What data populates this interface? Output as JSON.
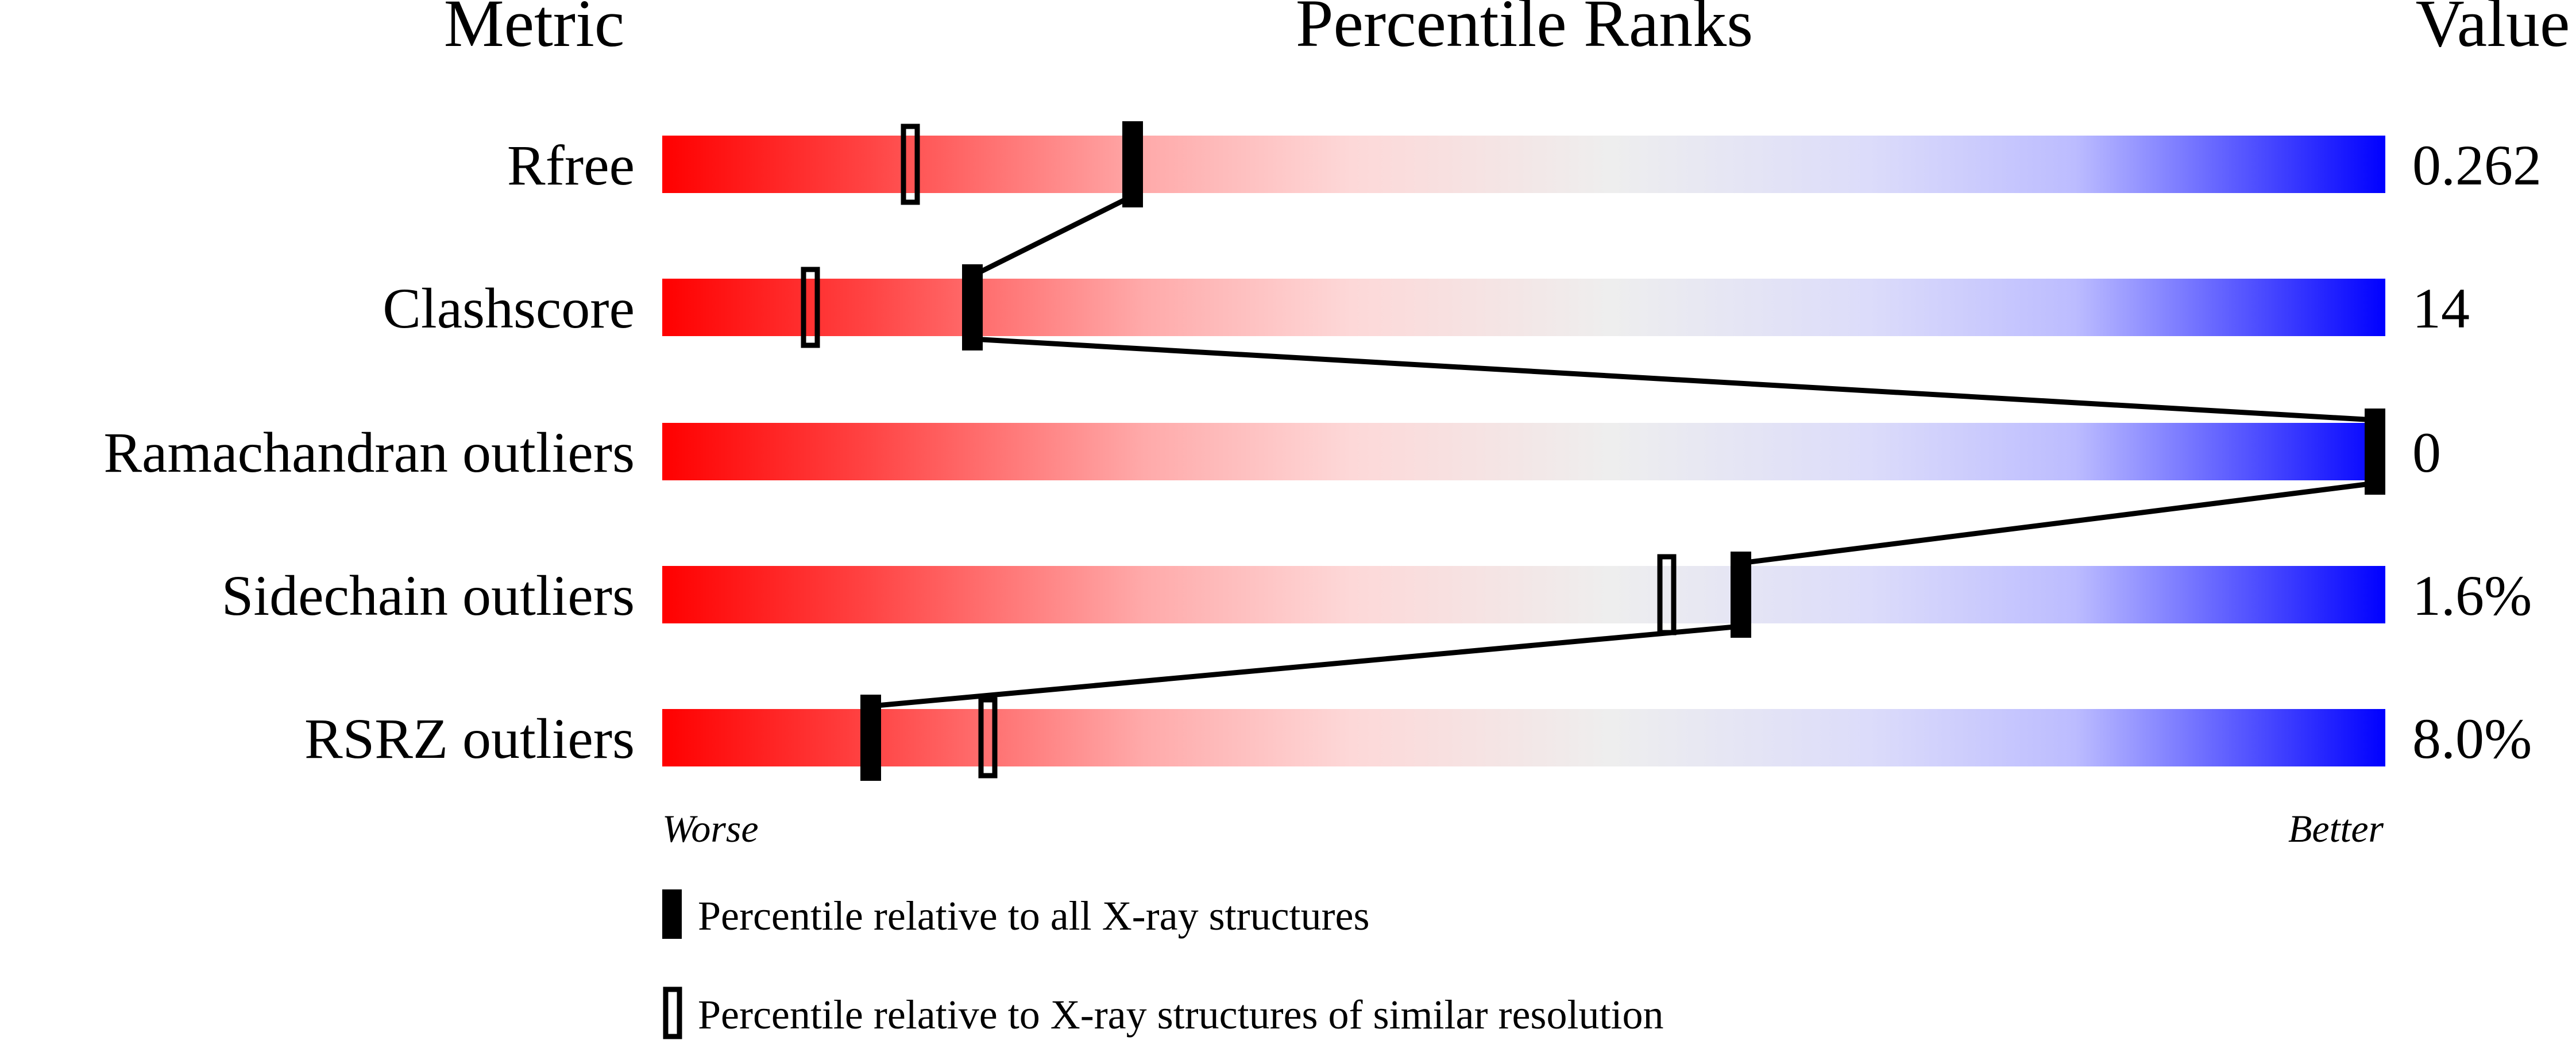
{
  "chart_data": {
    "type": "percentile-slider",
    "headers": {
      "metric": "Metric",
      "ranks": "Percentile Ranks",
      "value": "Value"
    },
    "xlim": [
      0,
      100
    ],
    "rows": [
      {
        "metric": "Rfree",
        "value": "0.262",
        "percentile_all": 27.3,
        "percentile_similar": 14.4
      },
      {
        "metric": "Clashscore",
        "value": "14",
        "percentile_all": 18.0,
        "percentile_similar": 8.6
      },
      {
        "metric": "Ramachandran outliers",
        "value": "0",
        "percentile_all": 100,
        "percentile_similar": 100
      },
      {
        "metric": "Sidechain outliers",
        "value": "1.6%",
        "percentile_all": 62.6,
        "percentile_similar": 58.3
      },
      {
        "metric": "RSRZ outliers",
        "value": "8.0%",
        "percentile_all": 12.1,
        "percentile_similar": 18.9
      }
    ],
    "axis": {
      "left": "Worse",
      "right": "Better"
    },
    "legend": [
      {
        "marker": "filled",
        "label": "Percentile relative to all X-ray structures"
      },
      {
        "marker": "open",
        "label": "Percentile relative to X-ray structures of similar resolution"
      }
    ],
    "colors": {
      "worse": "#ff0000",
      "middle": "#eeeeee",
      "better": "#0000ff"
    }
  }
}
